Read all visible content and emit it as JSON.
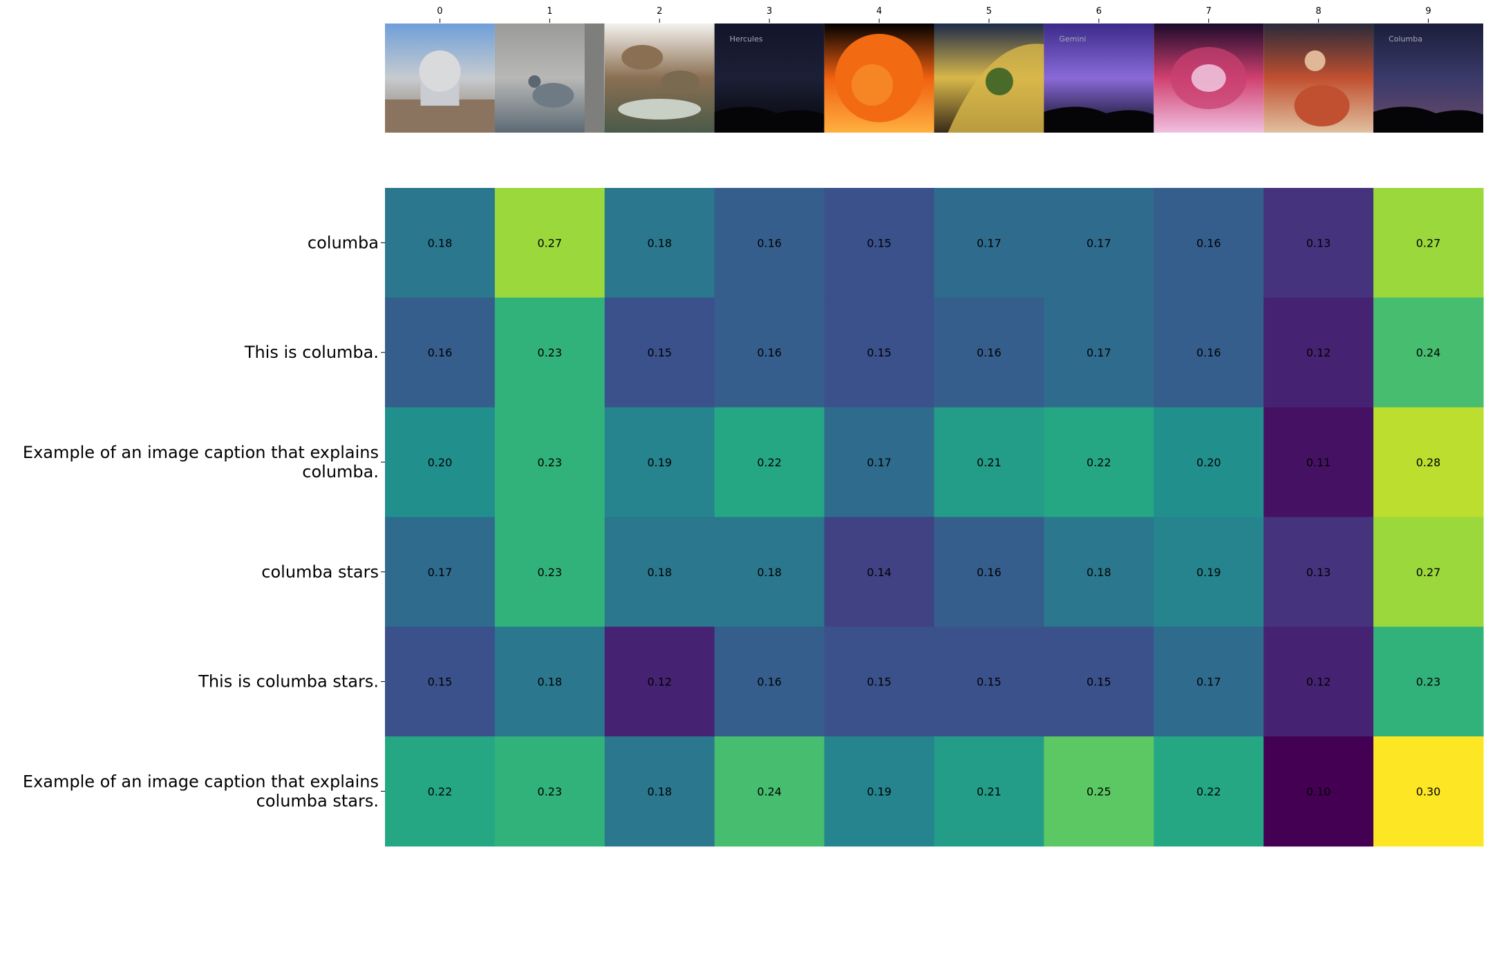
{
  "chart_data": {
    "type": "heatmap",
    "title": "",
    "xlabel": "",
    "ylabel": "",
    "x_tick_labels": [
      "0",
      "1",
      "2",
      "3",
      "4",
      "5",
      "6",
      "7",
      "8",
      "9"
    ],
    "y_tick_labels": [
      "columba",
      "This is columba.",
      "Example of an image caption that explains\ncolumba.",
      "columba stars",
      "This is columba stars.",
      "Example of an image caption that explains\ncolumba stars."
    ],
    "values": [
      [
        0.18,
        0.27,
        0.18,
        0.16,
        0.15,
        0.17,
        0.17,
        0.16,
        0.13,
        0.27
      ],
      [
        0.16,
        0.23,
        0.15,
        0.16,
        0.15,
        0.16,
        0.17,
        0.16,
        0.12,
        0.24
      ],
      [
        0.2,
        0.23,
        0.19,
        0.22,
        0.17,
        0.21,
        0.22,
        0.2,
        0.11,
        0.28
      ],
      [
        0.17,
        0.23,
        0.18,
        0.18,
        0.14,
        0.16,
        0.18,
        0.19,
        0.13,
        0.27
      ],
      [
        0.15,
        0.18,
        0.12,
        0.16,
        0.15,
        0.15,
        0.15,
        0.17,
        0.12,
        0.23
      ],
      [
        0.22,
        0.23,
        0.18,
        0.24,
        0.19,
        0.21,
        0.25,
        0.22,
        0.1,
        0.3
      ]
    ],
    "value_format": "2 decimals",
    "colormap": "viridis",
    "color_range": [
      0.1,
      0.3
    ],
    "grid": false,
    "legend": "none",
    "column_thumbnails": [
      {
        "icon": "observatory-dome-photo",
        "colors": [
          "#6f9fd8",
          "#c7cbd0",
          "#8a7460"
        ]
      },
      {
        "icon": "pigeon-photo",
        "colors": [
          "#9a9a98",
          "#b8b8b6",
          "#5c6a74"
        ]
      },
      {
        "icon": "bird-illustration",
        "colors": [
          "#f4f2ee",
          "#8a6f52",
          "#4a5a4a"
        ],
        "text": [
          "",
          "",
          ""
        ]
      },
      {
        "icon": "night-sky-hercules",
        "colors": [
          "#12152a",
          "#1c2036",
          "#06060a"
        ],
        "text": [
          "Hercules"
        ]
      },
      {
        "icon": "sun-photo",
        "colors": [
          "#000000",
          "#f06010",
          "#ffb040"
        ]
      },
      {
        "icon": "flammarion-engraving",
        "colors": [
          "#1e2a4a",
          "#d8b84a",
          "#3a2a1a"
        ]
      },
      {
        "icon": "night-sky-gemini",
        "colors": [
          "#3a2a8a",
          "#8a6ad8",
          "#0a0a1a"
        ],
        "text": [
          "Gemini"
        ]
      },
      {
        "icon": "nebula-photo",
        "colors": [
          "#1a0a2a",
          "#d04070",
          "#f0c0e0"
        ]
      },
      {
        "icon": "guitarist-photo",
        "colors": [
          "#2a2a3a",
          "#c05030",
          "#e0c0a0"
        ]
      },
      {
        "icon": "night-sky-columba",
        "colors": [
          "#1a1e3a",
          "#3a3a6a",
          "#6a4a6a"
        ],
        "text": [
          "Columba"
        ]
      }
    ]
  }
}
